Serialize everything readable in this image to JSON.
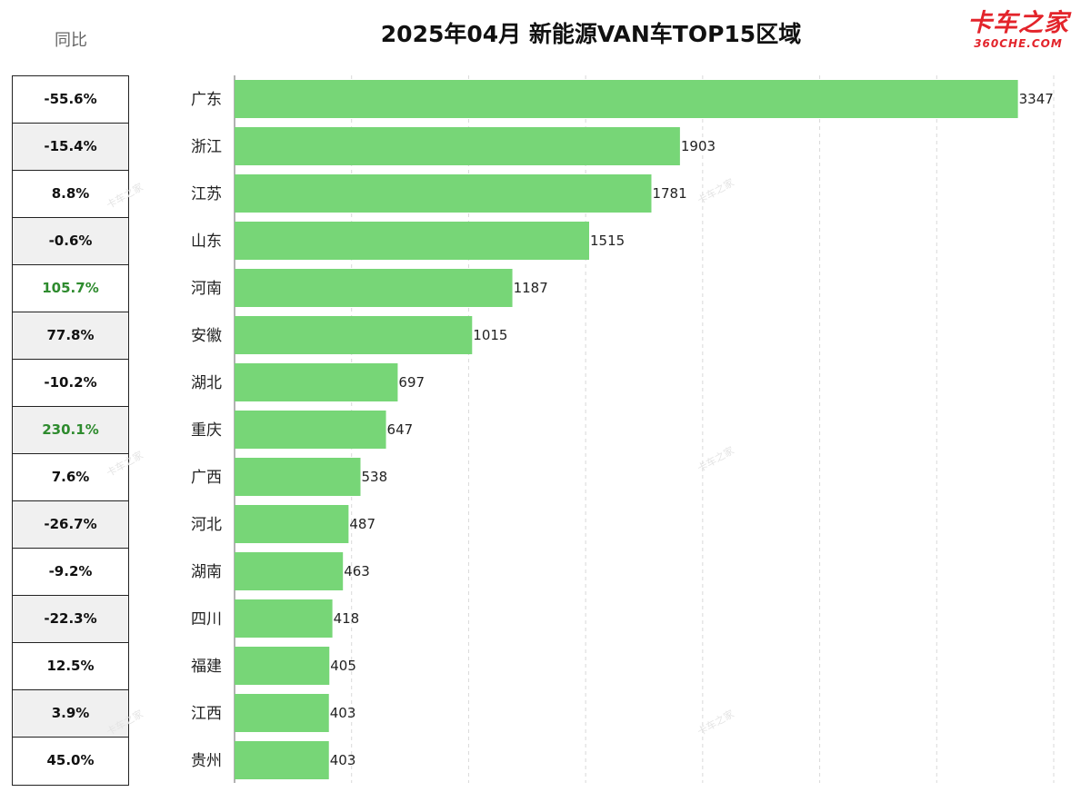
{
  "title": "2025年04月 新能源VAN车TOP15区域",
  "logo": {
    "main": "卡车之家",
    "sub": "360CHE.COM"
  },
  "yoy": {
    "header": "同比",
    "values": [
      "-55.6%",
      "-15.4%",
      "8.8%",
      "-0.6%",
      "105.7%",
      "77.8%",
      "-10.2%",
      "230.1%",
      "7.6%",
      "-26.7%",
      "-9.2%",
      "-22.3%",
      "12.5%",
      "3.9%",
      "45.0%"
    ],
    "highlight_color": "#2e8b2e"
  },
  "chart_data": {
    "type": "bar",
    "orientation": "horizontal",
    "title": "2025年04月 新能源VAN车TOP15区域",
    "categories": [
      "广东",
      "浙江",
      "江苏",
      "山东",
      "河南",
      "安徽",
      "湖北",
      "重庆",
      "广西",
      "河北",
      "湖南",
      "四川",
      "福建",
      "江西",
      "贵州"
    ],
    "values": [
      3347,
      1903,
      1781,
      1515,
      1187,
      1015,
      697,
      647,
      538,
      487,
      463,
      418,
      405,
      403,
      403
    ],
    "xlim": [
      0,
      3500
    ],
    "grid": "vertical-dashed",
    "bar_color": "#77d677"
  },
  "watermark": "卡车之家"
}
